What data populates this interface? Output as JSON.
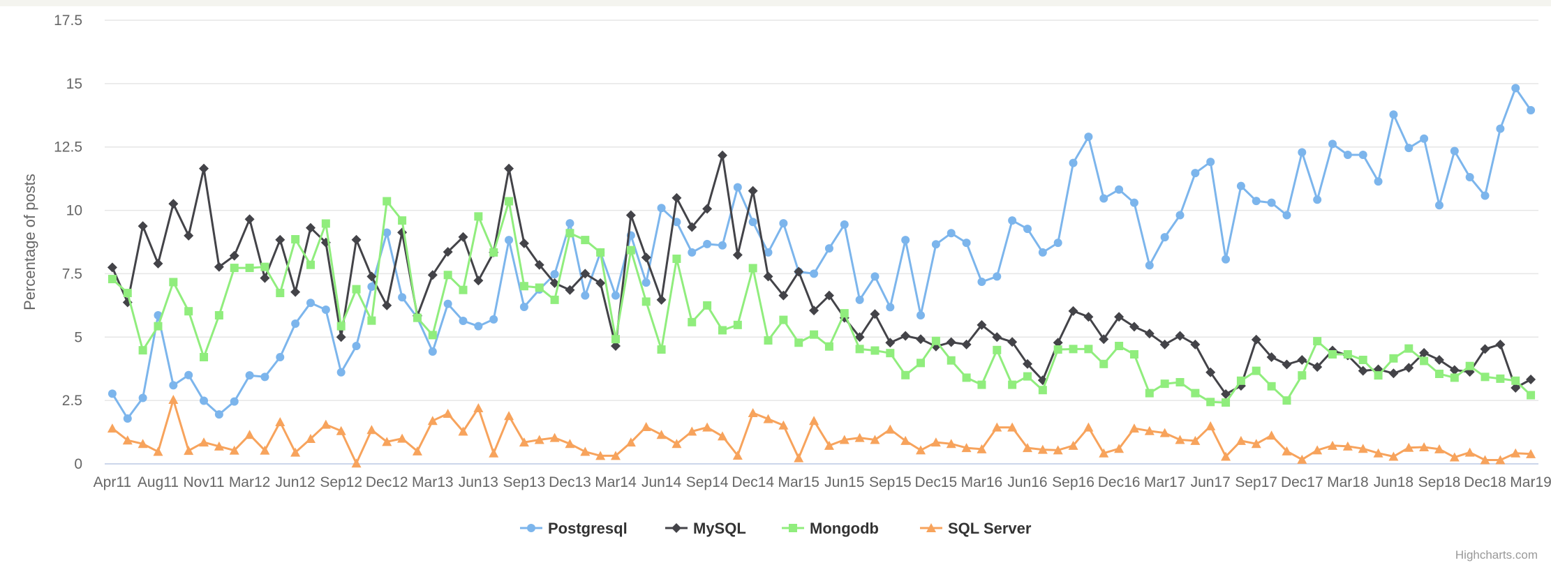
{
  "chart_data": {
    "type": "line",
    "title": "",
    "xlabel": "",
    "ylabel": "Percentage of posts",
    "ylim": [
      0,
      17.5
    ],
    "yticks": [
      0,
      2.5,
      5,
      7.5,
      10,
      12.5,
      15,
      17.5
    ],
    "ytick_labels": [
      "0",
      "2.5",
      "5",
      "7.5",
      "10",
      "12.5",
      "15",
      "17.5"
    ],
    "grid": true,
    "legend_position": "bottom-center",
    "point_count": 94,
    "xtick_every": 3,
    "xtick_labels": [
      "Apr11",
      "Aug11",
      "Nov11",
      "Mar12",
      "Jun12",
      "Sep12",
      "Dec12",
      "Mar13",
      "Jun13",
      "Sep13",
      "Dec13",
      "Mar14",
      "Jun14",
      "Sep14",
      "Dec14",
      "Mar15",
      "Jun15",
      "Sep15",
      "Dec15",
      "Mar16",
      "Jun16",
      "Sep16",
      "Dec16",
      "Mar17",
      "Jun17",
      "Sep17",
      "Dec17",
      "Mar18",
      "Jun18",
      "Sep18",
      "Dec18",
      "Mar19"
    ],
    "series": [
      {
        "name": "Postgresql",
        "color": "#7cb5ec",
        "marker": "circle",
        "values": [
          2.77,
          1.79,
          2.6,
          5.86,
          3.1,
          3.5,
          2.49,
          1.95,
          2.46,
          3.49,
          3.43,
          4.21,
          5.53,
          6.35,
          6.08,
          3.61,
          4.65,
          6.99,
          9.12,
          6.57,
          5.76,
          4.43,
          6.31,
          5.64,
          5.43,
          5.7,
          8.83,
          6.19,
          6.88,
          7.48,
          9.49,
          6.64,
          8.34,
          6.64,
          9.01,
          7.15,
          10.09,
          9.54,
          8.34,
          8.67,
          8.62,
          10.91,
          9.54,
          8.34,
          9.49,
          7.58,
          7.5,
          8.5,
          9.44,
          6.47,
          7.39,
          6.18,
          8.83,
          5.86,
          8.66,
          9.1,
          8.72,
          7.18,
          7.39,
          9.6,
          9.27,
          8.34,
          8.72,
          11.87,
          12.9,
          10.47,
          10.82,
          10.3,
          7.83,
          8.94,
          9.81,
          11.47,
          11.91,
          8.07,
          10.96,
          10.37,
          10.3,
          9.81,
          12.29,
          10.42,
          12.62,
          12.19,
          12.19,
          11.14,
          13.78,
          12.46,
          12.83,
          10.2,
          12.34,
          11.31,
          10.58,
          13.22,
          14.82,
          13.95
        ]
      },
      {
        "name": "MySQL",
        "color": "#434348",
        "marker": "diamond",
        "values": [
          7.75,
          6.37,
          9.38,
          7.9,
          10.26,
          9.0,
          11.65,
          7.77,
          8.21,
          9.65,
          7.33,
          8.84,
          6.78,
          9.31,
          8.73,
          5.0,
          8.84,
          7.39,
          6.25,
          9.13,
          5.84,
          7.45,
          8.36,
          8.95,
          7.23,
          8.34,
          11.65,
          8.7,
          7.85,
          7.13,
          6.86,
          7.5,
          7.13,
          4.65,
          9.81,
          8.14,
          6.47,
          10.49,
          9.34,
          10.06,
          12.17,
          8.24,
          10.77,
          7.39,
          6.64,
          7.58,
          6.05,
          6.64,
          5.76,
          5.0,
          5.91,
          4.78,
          5.05,
          4.92,
          4.63,
          4.8,
          4.71,
          5.48,
          5.0,
          4.81,
          3.94,
          3.3,
          4.78,
          6.03,
          5.8,
          4.92,
          5.8,
          5.41,
          5.14,
          4.71,
          5.05,
          4.71,
          3.61,
          2.75,
          3.08,
          4.9,
          4.21,
          3.92,
          4.1,
          3.82,
          4.47,
          4.28,
          3.67,
          3.73,
          3.57,
          3.79,
          4.38,
          4.1,
          3.7,
          3.63,
          4.53,
          4.71,
          3.0,
          3.33
        ]
      },
      {
        "name": "Mongodb",
        "color": "#90ed7d",
        "marker": "square",
        "values": [
          7.29,
          6.74,
          4.48,
          5.43,
          7.17,
          6.02,
          4.21,
          5.86,
          7.73,
          7.73,
          7.77,
          6.74,
          8.86,
          7.85,
          9.48,
          5.43,
          6.89,
          5.65,
          10.36,
          9.6,
          5.76,
          5.08,
          7.45,
          6.86,
          9.76,
          8.34,
          10.36,
          7.01,
          6.95,
          6.47,
          9.1,
          8.83,
          8.34,
          4.92,
          8.43,
          6.4,
          4.51,
          8.09,
          5.59,
          6.25,
          5.27,
          5.48,
          7.72,
          4.87,
          5.68,
          4.78,
          5.1,
          4.63,
          5.94,
          4.53,
          4.47,
          4.37,
          3.5,
          3.98,
          4.85,
          4.08,
          3.4,
          3.12,
          4.49,
          3.12,
          3.45,
          2.91,
          4.51,
          4.53,
          4.53,
          3.94,
          4.65,
          4.32,
          2.79,
          3.16,
          3.22,
          2.79,
          2.44,
          2.42,
          3.28,
          3.67,
          3.06,
          2.5,
          3.49,
          4.84,
          4.32,
          4.32,
          4.1,
          3.49,
          4.16,
          4.55,
          4.06,
          3.55,
          3.4,
          3.86,
          3.43,
          3.36,
          3.28,
          2.71
        ]
      },
      {
        "name": "SQL Server",
        "color": "#f7a35c",
        "marker": "triangle",
        "values": [
          1.4,
          0.93,
          0.79,
          0.48,
          2.53,
          0.52,
          0.85,
          0.69,
          0.53,
          1.15,
          0.53,
          1.65,
          0.45,
          0.99,
          1.55,
          1.3,
          0.02,
          1.34,
          0.87,
          1.0,
          0.5,
          1.7,
          1.98,
          1.28,
          2.2,
          0.42,
          1.89,
          0.85,
          0.95,
          1.03,
          0.79,
          0.48,
          0.32,
          0.32,
          0.85,
          1.46,
          1.15,
          0.79,
          1.28,
          1.44,
          1.09,
          0.33,
          2.01,
          1.77,
          1.52,
          0.23,
          1.7,
          0.72,
          0.95,
          1.03,
          0.95,
          1.36,
          0.91,
          0.54,
          0.85,
          0.79,
          0.63,
          0.58,
          1.44,
          1.44,
          0.63,
          0.56,
          0.54,
          0.72,
          1.44,
          0.42,
          0.6,
          1.4,
          1.3,
          1.22,
          0.95,
          0.91,
          1.49,
          0.29,
          0.91,
          0.79,
          1.12,
          0.5,
          0.17,
          0.54,
          0.72,
          0.69,
          0.6,
          0.42,
          0.29,
          0.64,
          0.66,
          0.58,
          0.26,
          0.45,
          0.15,
          0.15,
          0.42,
          0.39
        ]
      }
    ]
  },
  "credits": "Highcharts.com"
}
